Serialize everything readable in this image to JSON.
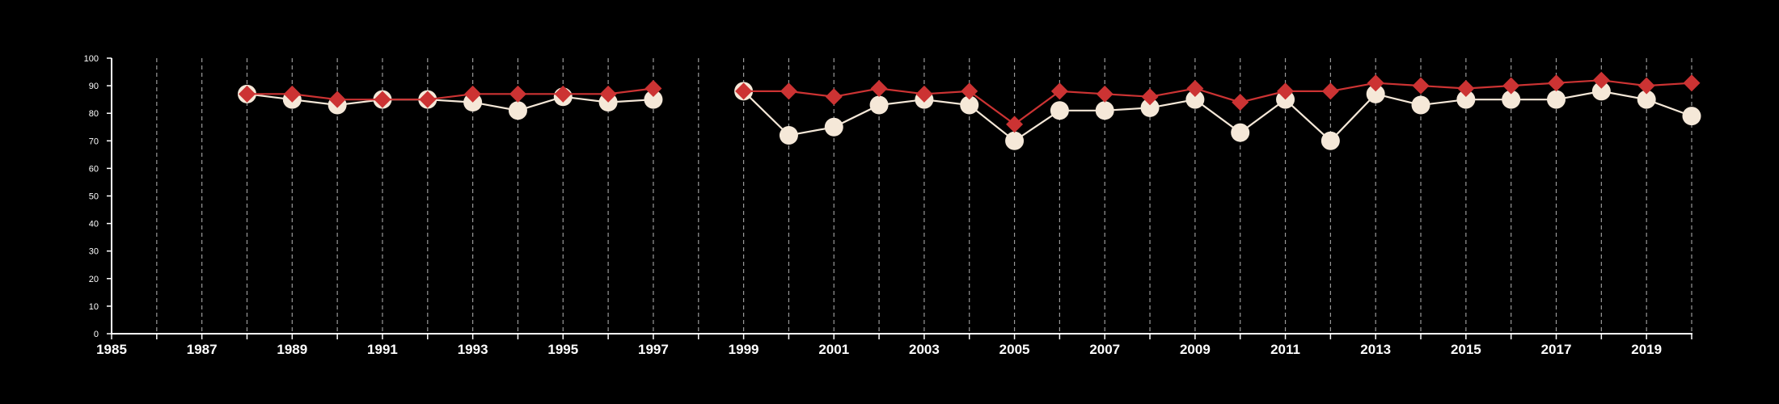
{
  "chart_data": {
    "type": "line",
    "title": "",
    "xlabel": "",
    "ylabel": "",
    "xlim": [
      1985,
      2020
    ],
    "ylim": [
      0,
      100
    ],
    "x_ticks": [
      "1985",
      "1987",
      "1989",
      "1991",
      "1993",
      "1995",
      "1997",
      "1999",
      "2001",
      "2003",
      "2005",
      "2007",
      "2009",
      "2011",
      "2013",
      "2015",
      "2017",
      "2019"
    ],
    "y_ticks": [
      "0",
      "10",
      "20",
      "30",
      "40",
      "50",
      "60",
      "70",
      "80",
      "90",
      "100"
    ],
    "vertical_gridlines": "dashed, every year",
    "series": [
      {
        "color": "#cc3333",
        "marker": "diamond",
        "points": [
          [
            1988,
            87
          ],
          [
            1989,
            87
          ],
          [
            1990,
            85
          ],
          [
            1991,
            85
          ],
          [
            1992,
            85
          ],
          [
            1993,
            87
          ],
          [
            1994,
            87
          ],
          [
            1995,
            87
          ],
          [
            1996,
            87
          ],
          [
            1997,
            89
          ],
          [
            1999,
            88
          ],
          [
            2000,
            88
          ],
          [
            2001,
            86
          ],
          [
            2002,
            89
          ],
          [
            2003,
            87
          ],
          [
            2004,
            88
          ],
          [
            2005,
            76
          ],
          [
            2006,
            88
          ],
          [
            2007,
            87
          ],
          [
            2008,
            86
          ],
          [
            2009,
            89
          ],
          [
            2010,
            84
          ],
          [
            2011,
            88
          ],
          [
            2012,
            88
          ],
          [
            2013,
            91
          ],
          [
            2014,
            90
          ],
          [
            2015,
            89
          ],
          [
            2016,
            90
          ],
          [
            2017,
            91
          ],
          [
            2018,
            92
          ],
          [
            2019,
            90
          ],
          [
            2020,
            91
          ]
        ]
      },
      {
        "color": "#f5e8d8",
        "marker": "circle",
        "points": [
          [
            1988,
            87
          ],
          [
            1989,
            85
          ],
          [
            1990,
            83
          ],
          [
            1991,
            85
          ],
          [
            1992,
            85
          ],
          [
            1993,
            84
          ],
          [
            1994,
            81
          ],
          [
            1995,
            86
          ],
          [
            1996,
            84
          ],
          [
            1997,
            85
          ],
          [
            1999,
            88
          ],
          [
            2000,
            72
          ],
          [
            2001,
            75
          ],
          [
            2002,
            83
          ],
          [
            2003,
            85
          ],
          [
            2004,
            83
          ],
          [
            2005,
            70
          ],
          [
            2006,
            81
          ],
          [
            2007,
            81
          ],
          [
            2008,
            82
          ],
          [
            2009,
            85
          ],
          [
            2010,
            73
          ],
          [
            2011,
            85
          ],
          [
            2012,
            70
          ],
          [
            2013,
            87
          ],
          [
            2014,
            83
          ],
          [
            2015,
            85
          ],
          [
            2016,
            85
          ],
          [
            2017,
            85
          ],
          [
            2018,
            88
          ],
          [
            2019,
            85
          ],
          [
            2020,
            79
          ]
        ]
      }
    ]
  }
}
